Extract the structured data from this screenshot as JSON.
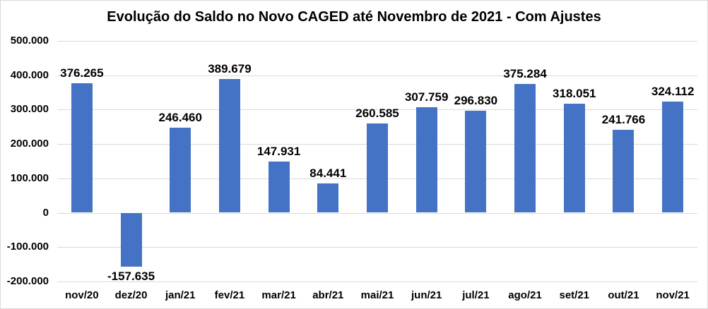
{
  "chart_data": {
    "type": "bar",
    "title": "Evolução do Saldo no Novo CAGED até Novembro de 2021 - Com Ajustes",
    "categories": [
      "nov/20",
      "dez/20",
      "jan/21",
      "fev/21",
      "mar/21",
      "abr/21",
      "mai/21",
      "jun/21",
      "jul/21",
      "ago/21",
      "set/21",
      "out/21",
      "nov/21"
    ],
    "values": [
      376265,
      -157635,
      246460,
      389679,
      147931,
      84441,
      260585,
      307759,
      296830,
      375284,
      318051,
      241766,
      324112
    ],
    "value_labels": [
      "376.265",
      "-157.635",
      "246.460",
      "389.679",
      "147.931",
      "84.441",
      "260.585",
      "307.759",
      "296.830",
      "375.284",
      "318.051",
      "241.766",
      "324.112"
    ],
    "series_name": "Saldo",
    "xlabel": "",
    "ylabel": "",
    "ylim": [
      -200000,
      500000
    ],
    "y_tick_step": 100000,
    "y_ticks": [
      {
        "value": 500000,
        "label": "500.000"
      },
      {
        "value": 400000,
        "label": "400.000"
      },
      {
        "value": 300000,
        "label": "300.000"
      },
      {
        "value": 200000,
        "label": "200.000"
      },
      {
        "value": 100000,
        "label": "100.000"
      },
      {
        "value": 0,
        "label": "0"
      },
      {
        "value": -100000,
        "label": "-100.000"
      },
      {
        "value": -200000,
        "label": "-200.000"
      }
    ],
    "grid": true,
    "legend": "none",
    "colors": {
      "bar": "#4472c4",
      "gridline": "#d9d9d9",
      "text": "#000000",
      "chart_border": "#d9d9d9",
      "background": "#ffffff"
    }
  }
}
